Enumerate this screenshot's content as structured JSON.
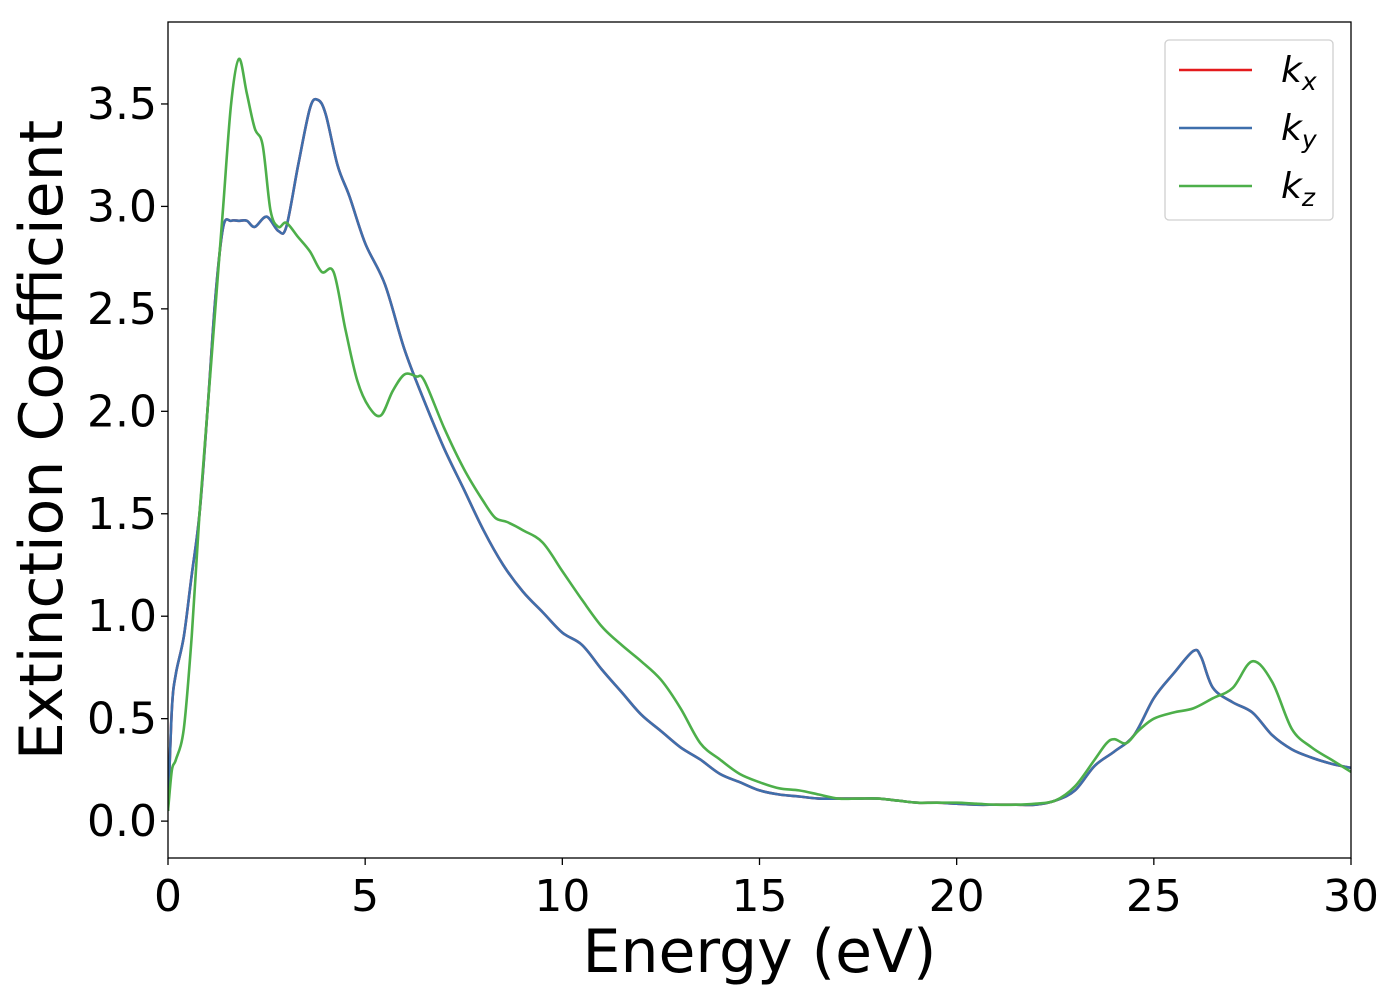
{
  "chart_data": {
    "type": "line",
    "title": "",
    "xlabel": "Energy (eV)",
    "ylabel": "Extinction Coefficient",
    "xlim": [
      0,
      30
    ],
    "ylim": [
      -0.18,
      3.9
    ],
    "xticks": [
      0,
      5,
      10,
      15,
      20,
      25,
      30
    ],
    "xtick_labels": [
      "0",
      "5",
      "10",
      "15",
      "20",
      "25",
      "30"
    ],
    "yticks": [
      0.0,
      0.5,
      1.0,
      1.5,
      2.0,
      2.5,
      3.0,
      3.5
    ],
    "ytick_labels": [
      "0.0",
      "0.5",
      "1.0",
      "1.5",
      "2.0",
      "2.5",
      "3.0",
      "3.5"
    ],
    "grid": false,
    "legend_position": "top-right",
    "series": [
      {
        "name": "k_x",
        "label_base": "k",
        "label_sub": "x",
        "color": "#e41a1c",
        "x": [
          0,
          0.1,
          0.2,
          0.4,
          0.6,
          0.8,
          1.0,
          1.2,
          1.4,
          1.6,
          1.8,
          2.0,
          2.2,
          2.5,
          2.8,
          3.0,
          3.3,
          3.6,
          3.8,
          4.0,
          4.3,
          4.6,
          5.0,
          5.5,
          6.0,
          6.5,
          7.0,
          7.5,
          8.0,
          8.5,
          9.0,
          9.5,
          10.0,
          10.5,
          11.0,
          11.5,
          12.0,
          12.5,
          13.0,
          13.5,
          14.0,
          14.5,
          15.0,
          15.5,
          16.0,
          16.5,
          17.0,
          17.5,
          18.0,
          18.5,
          19.0,
          19.5,
          20.0,
          20.5,
          21.0,
          21.5,
          22.0,
          22.5,
          23.0,
          23.5,
          24.0,
          24.5,
          25.0,
          25.5,
          26.0,
          26.2,
          26.5,
          27.0,
          27.5,
          28.0,
          28.5,
          29.0,
          29.5,
          30.0
        ],
        "y": [
          0.05,
          0.55,
          0.72,
          0.9,
          1.2,
          1.5,
          2.0,
          2.55,
          2.9,
          2.93,
          2.93,
          2.93,
          2.9,
          2.95,
          2.88,
          2.9,
          3.2,
          3.48,
          3.52,
          3.45,
          3.2,
          3.05,
          2.82,
          2.62,
          2.3,
          2.05,
          1.82,
          1.62,
          1.42,
          1.25,
          1.12,
          1.02,
          0.92,
          0.86,
          0.74,
          0.63,
          0.52,
          0.44,
          0.36,
          0.3,
          0.23,
          0.19,
          0.15,
          0.13,
          0.12,
          0.11,
          0.11,
          0.11,
          0.11,
          0.1,
          0.09,
          0.09,
          0.085,
          0.08,
          0.08,
          0.08,
          0.08,
          0.1,
          0.15,
          0.27,
          0.34,
          0.42,
          0.6,
          0.72,
          0.83,
          0.8,
          0.65,
          0.58,
          0.53,
          0.42,
          0.35,
          0.31,
          0.28,
          0.26
        ]
      },
      {
        "name": "k_y",
        "label_base": "k",
        "label_sub": "y",
        "color": "#3e6fac",
        "x": [
          0,
          0.1,
          0.2,
          0.4,
          0.6,
          0.8,
          1.0,
          1.2,
          1.4,
          1.6,
          1.8,
          2.0,
          2.2,
          2.5,
          2.8,
          3.0,
          3.3,
          3.6,
          3.8,
          4.0,
          4.3,
          4.6,
          5.0,
          5.5,
          6.0,
          6.5,
          7.0,
          7.5,
          8.0,
          8.5,
          9.0,
          9.5,
          10.0,
          10.5,
          11.0,
          11.5,
          12.0,
          12.5,
          13.0,
          13.5,
          14.0,
          14.5,
          15.0,
          15.5,
          16.0,
          16.5,
          17.0,
          17.5,
          18.0,
          18.5,
          19.0,
          19.5,
          20.0,
          20.5,
          21.0,
          21.5,
          22.0,
          22.5,
          23.0,
          23.5,
          24.0,
          24.5,
          25.0,
          25.5,
          26.0,
          26.2,
          26.5,
          27.0,
          27.5,
          28.0,
          28.5,
          29.0,
          29.5,
          30.0
        ],
        "y": [
          0.05,
          0.55,
          0.72,
          0.9,
          1.2,
          1.5,
          2.0,
          2.55,
          2.9,
          2.93,
          2.93,
          2.93,
          2.9,
          2.95,
          2.88,
          2.9,
          3.2,
          3.48,
          3.52,
          3.45,
          3.2,
          3.05,
          2.82,
          2.62,
          2.3,
          2.05,
          1.82,
          1.62,
          1.42,
          1.25,
          1.12,
          1.02,
          0.92,
          0.86,
          0.74,
          0.63,
          0.52,
          0.44,
          0.36,
          0.3,
          0.23,
          0.19,
          0.15,
          0.13,
          0.12,
          0.11,
          0.11,
          0.11,
          0.11,
          0.1,
          0.09,
          0.09,
          0.085,
          0.08,
          0.08,
          0.08,
          0.08,
          0.1,
          0.15,
          0.27,
          0.34,
          0.42,
          0.6,
          0.72,
          0.83,
          0.8,
          0.65,
          0.58,
          0.53,
          0.42,
          0.35,
          0.31,
          0.28,
          0.26
        ]
      },
      {
        "name": "k_z",
        "label_base": "k",
        "label_sub": "z",
        "color": "#4daf4a",
        "x": [
          0,
          0.1,
          0.2,
          0.4,
          0.6,
          0.8,
          1.0,
          1.2,
          1.4,
          1.6,
          1.8,
          2.0,
          2.2,
          2.4,
          2.6,
          2.8,
          3.0,
          3.3,
          3.6,
          3.9,
          4.2,
          4.5,
          4.8,
          5.1,
          5.4,
          5.7,
          6.0,
          6.3,
          6.5,
          7.0,
          7.5,
          8.0,
          8.3,
          8.6,
          9.0,
          9.5,
          10.0,
          10.5,
          11.0,
          11.5,
          12.0,
          12.5,
          13.0,
          13.5,
          14.0,
          14.5,
          15.0,
          15.5,
          16.0,
          16.5,
          17.0,
          17.5,
          18.0,
          18.5,
          19.0,
          19.5,
          20.0,
          20.5,
          21.0,
          21.5,
          22.0,
          22.5,
          23.0,
          23.5,
          23.8,
          24.0,
          24.3,
          24.6,
          25.0,
          25.5,
          26.0,
          26.5,
          27.0,
          27.5,
          28.0,
          28.5,
          29.0,
          29.5,
          30.0
        ],
        "y": [
          0.05,
          0.25,
          0.3,
          0.45,
          0.9,
          1.5,
          2.0,
          2.5,
          3.0,
          3.5,
          3.72,
          3.55,
          3.38,
          3.3,
          2.98,
          2.9,
          2.92,
          2.85,
          2.78,
          2.68,
          2.68,
          2.4,
          2.15,
          2.02,
          1.98,
          2.1,
          2.18,
          2.17,
          2.15,
          1.92,
          1.72,
          1.56,
          1.48,
          1.46,
          1.42,
          1.36,
          1.22,
          1.08,
          0.95,
          0.86,
          0.78,
          0.69,
          0.55,
          0.38,
          0.3,
          0.23,
          0.19,
          0.16,
          0.15,
          0.13,
          0.11,
          0.11,
          0.11,
          0.1,
          0.09,
          0.09,
          0.09,
          0.085,
          0.08,
          0.08,
          0.085,
          0.1,
          0.17,
          0.3,
          0.38,
          0.4,
          0.38,
          0.44,
          0.5,
          0.53,
          0.55,
          0.6,
          0.65,
          0.78,
          0.68,
          0.45,
          0.36,
          0.3,
          0.24
        ]
      }
    ]
  }
}
